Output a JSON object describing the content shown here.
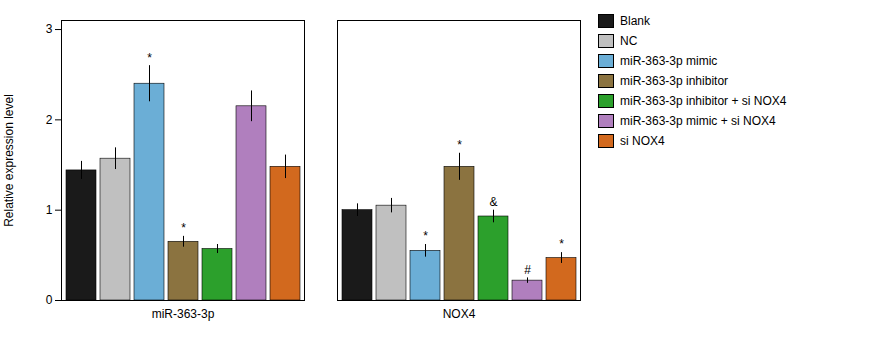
{
  "chart_data": {
    "type": "bar",
    "ylabel": "Relative expression level",
    "categories": [
      "miR-363-3p",
      "NOX4"
    ],
    "series": [
      {
        "name": "Blank",
        "color": "#1a1a1a",
        "values": [
          1.44,
          1.0
        ],
        "errors": [
          0.1,
          0.07
        ],
        "significance": [
          null,
          null
        ]
      },
      {
        "name": "NC",
        "color": "#c0c0c0",
        "values": [
          1.57,
          1.05
        ],
        "errors": [
          0.12,
          0.08
        ],
        "significance": [
          null,
          null
        ]
      },
      {
        "name": "miR-363-3p mimic",
        "color": "#6baed6",
        "values": [
          2.4,
          0.55
        ],
        "errors": [
          0.2,
          0.07
        ],
        "significance": [
          "*",
          "*"
        ]
      },
      {
        "name": "miR-363-3p inhibitor",
        "color": "#8b7340",
        "values": [
          0.65,
          1.48
        ],
        "errors": [
          0.06,
          0.15
        ],
        "significance": [
          "*",
          "*"
        ]
      },
      {
        "name": "miR-363-3p inhibitor + si NOX4",
        "color": "#2ca02c",
        "values": [
          0.57,
          0.93
        ],
        "errors": [
          0.05,
          0.07
        ],
        "significance": [
          null,
          "&"
        ]
      },
      {
        "name": "miR-363-3p mimic + si NOX4",
        "color": "#b07fbe",
        "values": [
          2.15,
          0.22
        ],
        "errors": [
          0.17,
          0.03
        ],
        "significance": [
          null,
          "#"
        ]
      },
      {
        "name": "si NOX4",
        "color": "#d2691e",
        "values": [
          1.48,
          0.47
        ],
        "errors": [
          0.13,
          0.06
        ],
        "significance": [
          null,
          "*"
        ]
      }
    ],
    "ylim": [
      0,
      3.1
    ],
    "yticks": [
      0,
      1,
      2,
      3
    ],
    "grid": false,
    "legend": "right"
  }
}
